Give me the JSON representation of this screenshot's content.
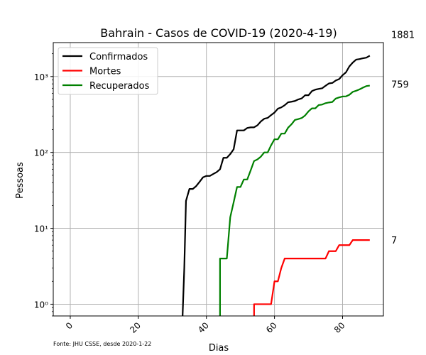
{
  "chart_data": {
    "type": "line",
    "title": "Bahrain - Casos de COVID-19 (2020-4-19)",
    "xlabel": "Dias",
    "ylabel": "Pessoas",
    "y_scale": "log",
    "xlim": [
      -5,
      92
    ],
    "ylim": [
      0.7,
      2800
    ],
    "x_ticks": [
      0,
      20,
      40,
      60,
      80
    ],
    "x_tick_labels": [
      "0",
      "20",
      "40",
      "60",
      "80"
    ],
    "y_ticks": [
      1,
      10,
      100,
      1000
    ],
    "y_tick_labels": [
      "10⁰",
      "10¹",
      "10²",
      "10³"
    ],
    "grid": true,
    "legend_position": "top-left",
    "source_note": "Fonte: JHU CSSE, desde 2020-1-22",
    "series": [
      {
        "name": "Confirmados",
        "color": "#000000",
        "end_label": "1881",
        "points": [
          [
            33,
            0.7
          ],
          [
            33.5,
            3
          ],
          [
            34,
            23
          ],
          [
            35,
            33
          ],
          [
            36,
            33
          ],
          [
            37,
            36
          ],
          [
            38,
            41
          ],
          [
            39,
            47
          ],
          [
            40,
            49
          ],
          [
            41,
            49
          ],
          [
            42,
            52
          ],
          [
            43,
            55
          ],
          [
            44,
            60
          ],
          [
            45,
            85
          ],
          [
            46,
            85
          ],
          [
            47,
            95
          ],
          [
            48,
            110
          ],
          [
            49,
            195
          ],
          [
            50,
            195
          ],
          [
            51,
            195
          ],
          [
            52,
            210
          ],
          [
            53,
            214
          ],
          [
            54,
            214
          ],
          [
            55,
            228
          ],
          [
            56,
            256
          ],
          [
            57,
            278
          ],
          [
            58,
            285
          ],
          [
            59,
            310
          ],
          [
            60,
            335
          ],
          [
            61,
            377
          ],
          [
            62,
            392
          ],
          [
            63,
            419
          ],
          [
            64,
            458
          ],
          [
            65,
            466
          ],
          [
            66,
            476
          ],
          [
            67,
            499
          ],
          [
            68,
            515
          ],
          [
            69,
            567
          ],
          [
            70,
            567
          ],
          [
            71,
            643
          ],
          [
            72,
            672
          ],
          [
            73,
            688
          ],
          [
            74,
            700
          ],
          [
            75,
            756
          ],
          [
            76,
            811
          ],
          [
            77,
            823
          ],
          [
            78,
            887
          ],
          [
            79,
            925
          ],
          [
            80,
            1040
          ],
          [
            81,
            1136
          ],
          [
            82,
            1361
          ],
          [
            83,
            1528
          ],
          [
            84,
            1671
          ],
          [
            85,
            1700
          ],
          [
            86,
            1740
          ],
          [
            87,
            1773
          ],
          [
            88,
            1881
          ]
        ]
      },
      {
        "name": "Mortes",
        "color": "#ff0000",
        "end_label": "7",
        "points": [
          [
            54,
            0.7
          ],
          [
            54,
            1
          ],
          [
            59,
            1
          ],
          [
            60,
            2
          ],
          [
            61,
            2
          ],
          [
            62,
            3
          ],
          [
            63,
            4
          ],
          [
            64,
            4
          ],
          [
            75,
            4
          ],
          [
            76,
            5
          ],
          [
            78,
            5
          ],
          [
            79,
            6
          ],
          [
            82,
            6
          ],
          [
            83,
            7
          ],
          [
            88,
            7
          ]
        ]
      },
      {
        "name": "Recuperados",
        "color": "#008000",
        "end_label": "759",
        "points": [
          [
            44,
            0.7
          ],
          [
            44,
            4
          ],
          [
            46,
            4
          ],
          [
            47,
            14
          ],
          [
            48,
            22
          ],
          [
            49,
            35
          ],
          [
            50,
            35
          ],
          [
            51,
            44
          ],
          [
            52,
            44
          ],
          [
            53,
            58
          ],
          [
            54,
            77
          ],
          [
            55,
            81
          ],
          [
            56,
            88
          ],
          [
            57,
            100
          ],
          [
            58,
            100
          ],
          [
            59,
            124
          ],
          [
            60,
            149
          ],
          [
            61,
            149
          ],
          [
            62,
            177
          ],
          [
            63,
            177
          ],
          [
            64,
            212
          ],
          [
            65,
            235
          ],
          [
            66,
            268
          ],
          [
            67,
            275
          ],
          [
            68,
            284
          ],
          [
            69,
            307
          ],
          [
            70,
            348
          ],
          [
            71,
            381
          ],
          [
            72,
            381
          ],
          [
            73,
            421
          ],
          [
            74,
            427
          ],
          [
            75,
            446
          ],
          [
            76,
            455
          ],
          [
            77,
            462
          ],
          [
            78,
            513
          ],
          [
            79,
            531
          ],
          [
            80,
            546
          ],
          [
            81,
            548
          ],
          [
            82,
            575
          ],
          [
            83,
            628
          ],
          [
            84,
            650
          ],
          [
            85,
            677
          ],
          [
            86,
            715
          ],
          [
            87,
            749
          ],
          [
            88,
            759
          ]
        ]
      }
    ]
  }
}
